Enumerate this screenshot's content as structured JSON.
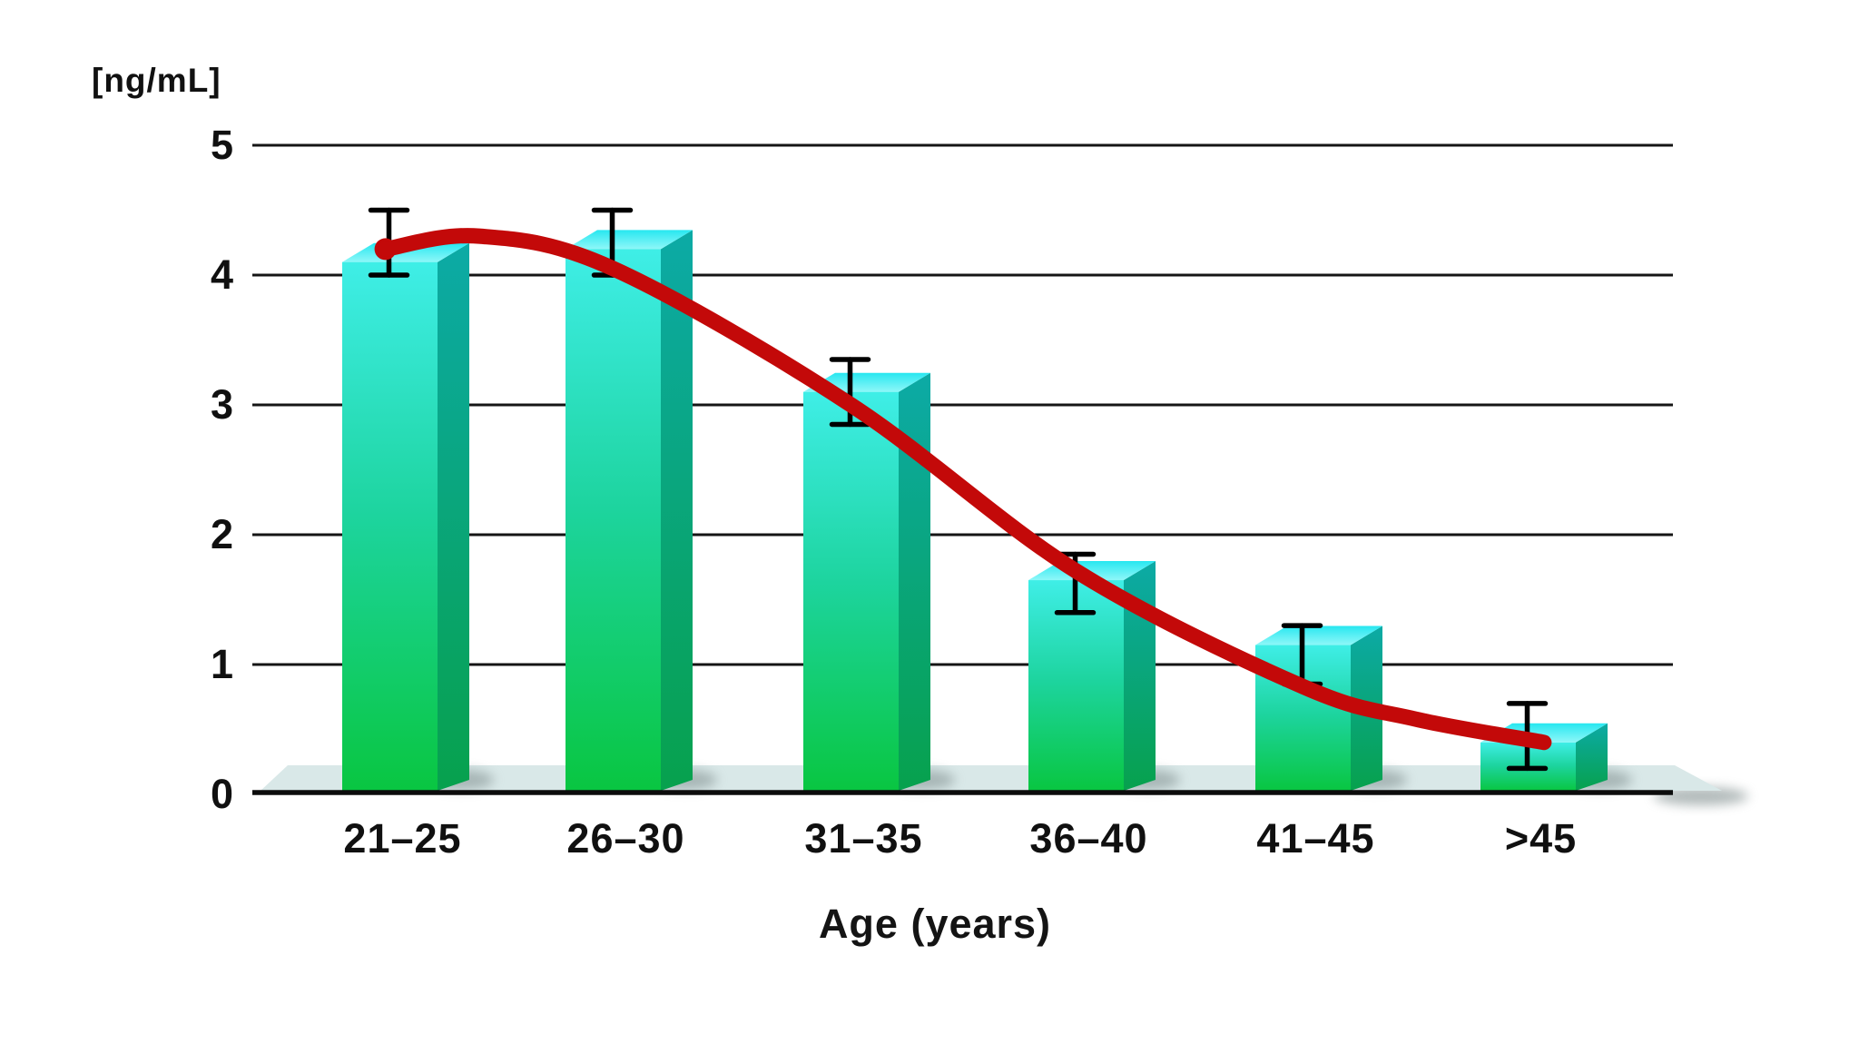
{
  "chart_data": {
    "type": "bar",
    "title": "",
    "unit_label": "[ng/mL]",
    "xlabel": "Age (years)",
    "categories": [
      "21–25",
      "26–30",
      "31–35",
      "36–40",
      "41–45",
      ">45"
    ],
    "series": [
      {
        "name": "concentration",
        "values": [
          4.1,
          4.2,
          3.1,
          1.65,
          1.15,
          0.4
        ],
        "error_low": [
          4.0,
          4.0,
          2.85,
          1.4,
          0.85,
          0.2
        ],
        "error_high": [
          4.5,
          4.5,
          3.35,
          1.85,
          1.3,
          0.7
        ]
      }
    ],
    "trend_curve": {
      "name": "trend-line",
      "points": [
        [
          -0.02,
          4.2
        ],
        [
          0.4,
          4.3
        ],
        [
          1.0,
          4.05
        ],
        [
          2.0,
          3.0
        ],
        [
          3.0,
          1.72
        ],
        [
          4.0,
          0.83
        ],
        [
          4.5,
          0.58
        ],
        [
          5.07,
          0.4
        ]
      ]
    },
    "yticks": [
      5,
      4,
      3,
      2,
      1,
      0
    ],
    "ylim": [
      0,
      5
    ],
    "grid": true,
    "legend_position": "none",
    "colors": {
      "grid": "#151515",
      "axis": "#0c0c0c",
      "error_bar": "#000000",
      "curve": "#c30909",
      "floor": "#d9e8e8",
      "shadow": "#7e8c8c",
      "bar_front_top": "#3feee7",
      "bar_front_mid": "#1dd49e",
      "bar_front_bottom": "#09c641",
      "bar_top_back": "#27e7f0",
      "bar_top_front": "#8ef7f8",
      "bar_side_top": "#0caaa6",
      "bar_side_bottom": "#07a14d",
      "text": "#111111"
    }
  }
}
